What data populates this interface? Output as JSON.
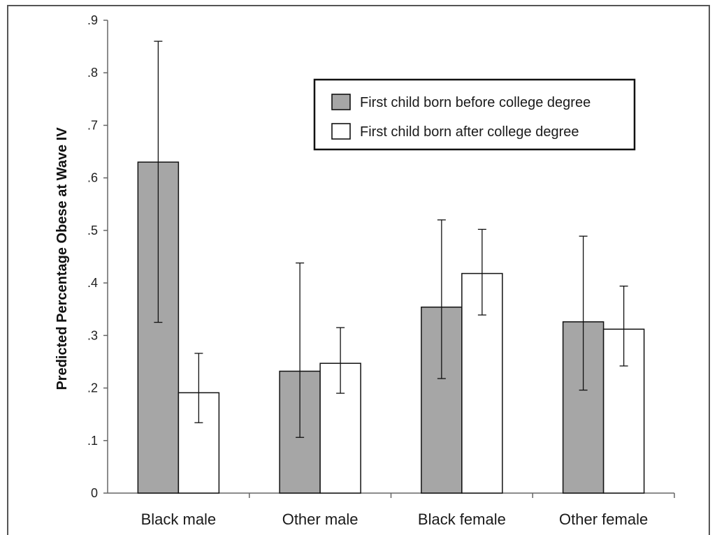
{
  "chart_data": {
    "type": "bar",
    "ylabel": "Predicted Percentage Obese at Wave IV",
    "xlabel": "",
    "ylim": [
      0,
      0.9
    ],
    "yticks": [
      0,
      0.1,
      0.2,
      0.3,
      0.4,
      0.5,
      0.6,
      0.7,
      0.8,
      0.9
    ],
    "ytick_labels": [
      "0",
      ".1",
      ".2",
      ".3",
      ".4",
      ".5",
      ".6",
      ".7",
      ".8",
      ".9"
    ],
    "categories": [
      "Black male",
      "Other male",
      "Black female",
      "Other female"
    ],
    "series": [
      {
        "name": "First child born before college degree",
        "color": "#a6a6a6",
        "values": [
          0.63,
          0.232,
          0.354,
          0.326
        ],
        "ci_low": [
          0.325,
          0.106,
          0.218,
          0.196
        ],
        "ci_high": [
          0.86,
          0.438,
          0.52,
          0.489
        ]
      },
      {
        "name": "First child born after college degree",
        "color": "#ffffff",
        "values": [
          0.191,
          0.247,
          0.418,
          0.312
        ],
        "ci_low": [
          0.134,
          0.19,
          0.339,
          0.242
        ],
        "ci_high": [
          0.266,
          0.315,
          0.502,
          0.394
        ]
      }
    ],
    "legend_position": "top-right",
    "grid": false
  }
}
